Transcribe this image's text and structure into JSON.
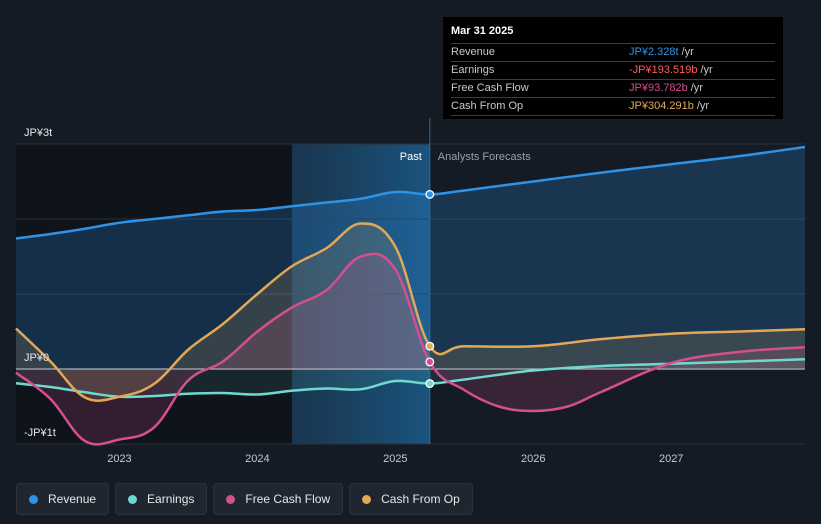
{
  "chart_data": {
    "type": "line",
    "title": "",
    "y_labels": [
      "JP¥3t",
      "JP¥0",
      "-JP¥1t"
    ],
    "x_labels": [
      "2023",
      "2024",
      "2025",
      "2026",
      "2027"
    ],
    "ylim": [
      -1.0,
      3.0
    ],
    "xlim": [
      2022.25,
      2027.97
    ],
    "divider_x": 2025.25,
    "past_shade_start": 2024.25,
    "past_label": "Past",
    "forecast_label": "Analysts Forecasts",
    "series": [
      {
        "name": "Revenue",
        "color": "#2e93e6",
        "x": [
          2022.25,
          2022.5,
          2022.75,
          2023.0,
          2023.25,
          2023.5,
          2023.75,
          2024.0,
          2024.25,
          2024.5,
          2024.75,
          2025.0,
          2025.25,
          2025.5,
          2026.0,
          2026.5,
          2027.0,
          2027.5,
          2027.97
        ],
        "y": [
          1.74,
          1.8,
          1.87,
          1.95,
          2.0,
          2.05,
          2.1,
          2.12,
          2.17,
          2.22,
          2.27,
          2.36,
          2.328,
          2.38,
          2.5,
          2.62,
          2.73,
          2.84,
          2.96
        ]
      },
      {
        "name": "Earnings",
        "color": "#6fd9d0",
        "x": [
          2022.25,
          2022.5,
          2022.75,
          2023.0,
          2023.25,
          2023.5,
          2023.75,
          2024.0,
          2024.25,
          2024.5,
          2024.75,
          2025.0,
          2025.25,
          2025.5,
          2026.0,
          2026.5,
          2027.0,
          2027.5,
          2027.97
        ],
        "y": [
          -0.19,
          -0.24,
          -0.31,
          -0.37,
          -0.36,
          -0.33,
          -0.32,
          -0.34,
          -0.29,
          -0.26,
          -0.27,
          -0.16,
          -0.194,
          -0.14,
          -0.02,
          0.04,
          0.07,
          0.1,
          0.13
        ]
      },
      {
        "name": "Free Cash Flow",
        "color": "#d44f8e",
        "x": [
          2022.25,
          2022.5,
          2022.75,
          2023.0,
          2023.25,
          2023.5,
          2023.75,
          2024.0,
          2024.25,
          2024.5,
          2024.75,
          2025.0,
          2025.25,
          2025.5,
          2025.75,
          2026.0,
          2026.25,
          2026.5,
          2027.0,
          2027.5,
          2027.97
        ],
        "y": [
          -0.05,
          -0.4,
          -0.96,
          -0.94,
          -0.78,
          -0.15,
          0.1,
          0.5,
          0.82,
          1.05,
          1.5,
          1.33,
          0.094,
          -0.28,
          -0.5,
          -0.56,
          -0.5,
          -0.3,
          0.08,
          0.23,
          0.29
        ]
      },
      {
        "name": "Cash From Op",
        "color": "#e3a857",
        "x": [
          2022.25,
          2022.5,
          2022.75,
          2023.0,
          2023.25,
          2023.5,
          2023.75,
          2024.0,
          2024.25,
          2024.5,
          2024.75,
          2025.0,
          2025.25,
          2025.5,
          2026.0,
          2026.5,
          2027.0,
          2027.5,
          2027.97
        ],
        "y": [
          0.54,
          0.1,
          -0.38,
          -0.37,
          -0.2,
          0.26,
          0.6,
          1.0,
          1.37,
          1.61,
          1.94,
          1.63,
          0.304,
          0.304,
          0.304,
          0.4,
          0.47,
          0.5,
          0.53
        ]
      }
    ]
  },
  "tooltip": {
    "date": "Mar 31 2025",
    "rows": [
      {
        "label": "Revenue",
        "value": "JP¥2.328t",
        "unit": "/yr",
        "color": "#2e93e6"
      },
      {
        "label": "Earnings",
        "value": "-JP¥193.519b",
        "unit": "/yr",
        "color": "#ff5c5c"
      },
      {
        "label": "Free Cash Flow",
        "value": "JP¥93.782b",
        "unit": "/yr",
        "color": "#d44f8e"
      },
      {
        "label": "Cash From Op",
        "value": "JP¥304.291b",
        "unit": "/yr",
        "color": "#e3a857"
      }
    ]
  },
  "legend": [
    {
      "label": "Revenue",
      "color": "#2e93e6"
    },
    {
      "label": "Earnings",
      "color": "#6fd9d0"
    },
    {
      "label": "Free Cash Flow",
      "color": "#d44f8e"
    },
    {
      "label": "Cash From Op",
      "color": "#e3a857"
    }
  ]
}
